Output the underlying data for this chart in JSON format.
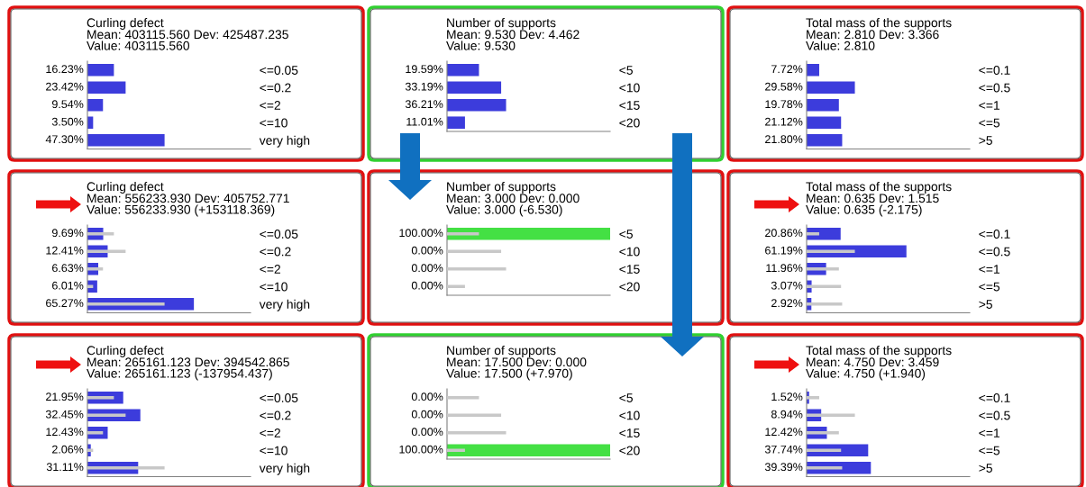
{
  "chart_data": [
    {
      "type": "bar",
      "orientation": "horizontal",
      "title": "Curling defect",
      "subtitle": "Mean: 403115.560 Dev: 425487.235\nValue: 403115.560",
      "categories": [
        "<=0.05",
        "<=0.2",
        "<=2",
        "<=10",
        "very high"
      ],
      "xlim": [
        0,
        100
      ],
      "tick_labels": "y",
      "series": [
        {
          "color": "#3c3cdc",
          "values": [
            16.23,
            23.42,
            9.54,
            3.5,
            47.3
          ],
          "value_labels": [
            "16.23%",
            "23.42%",
            "9.54%",
            "3.50%",
            "47.30%"
          ]
        }
      ]
    },
    {
      "type": "bar",
      "orientation": "horizontal",
      "title": "Number of supports",
      "subtitle": "Mean: 9.530 Dev: 4.462\nValue: 9.530",
      "categories": [
        "<5",
        "<10",
        "<15",
        "<20"
      ],
      "xlim": [
        0,
        100
      ],
      "tick_labels": "y",
      "series": [
        {
          "color": "#3c3cdc",
          "values": [
            19.59,
            33.19,
            36.21,
            11.01
          ],
          "value_labels": [
            "19.59%",
            "33.19%",
            "36.21%",
            "11.01%"
          ]
        }
      ]
    },
    {
      "type": "bar",
      "orientation": "horizontal",
      "title": "Total mass of the supports",
      "subtitle": "Mean: 2.810 Dev: 3.366\nValue: 2.810",
      "categories": [
        "<=0.1",
        "<=0.5",
        "<=1",
        "<=5",
        ">5"
      ],
      "xlim": [
        0,
        100
      ],
      "tick_labels": "y",
      "series": [
        {
          "color": "#3c3cdc",
          "values": [
            7.72,
            29.58,
            19.78,
            21.12,
            21.8
          ],
          "value_labels": [
            "7.72%",
            "29.58%",
            "19.78%",
            "21.12%",
            "21.80%"
          ]
        }
      ]
    },
    {
      "type": "bar",
      "orientation": "horizontal",
      "title": "Curling defect",
      "subtitle": "Mean: 556233.930 Dev: 405752.771\nValue: 556233.930 (+153118.369)",
      "categories": [
        "<=0.05",
        "<=0.2",
        "<=2",
        "<=10",
        "very high"
      ],
      "xlim": [
        0,
        100
      ],
      "tick_labels": "y",
      "series": [
        {
          "color": "#3c3cdc",
          "values": [
            9.69,
            12.41,
            6.63,
            6.01,
            65.27
          ],
          "value_labels": [
            "9.69%",
            "12.41%",
            "6.63%",
            "6.01%",
            "65.27%"
          ]
        },
        {
          "color": "#c8c8c8",
          "values": [
            16.23,
            23.42,
            9.54,
            3.5,
            47.3
          ]
        }
      ]
    },
    {
      "type": "bar",
      "orientation": "horizontal",
      "title": "Number of supports",
      "subtitle": "Mean: 3.000 Dev: 0.000\nValue: 3.000 (-6.530)",
      "categories": [
        "<5",
        "<10",
        "<15",
        "<20"
      ],
      "xlim": [
        0,
        100
      ],
      "tick_labels": "y",
      "series": [
        {
          "colors": [
            "#44e044",
            "#3c3cdc",
            "#3c3cdc",
            "#3c3cdc"
          ],
          "values": [
            100,
            0,
            0,
            0
          ],
          "value_labels": [
            "100.00%",
            "0.00%",
            "0.00%",
            "0.00%"
          ]
        },
        {
          "color": "#c8c8c8",
          "values": [
            19.59,
            33.19,
            36.21,
            11.01
          ]
        }
      ]
    },
    {
      "type": "bar",
      "orientation": "horizontal",
      "title": "Total mass of the supports",
      "subtitle": "Mean: 0.635 Dev: 1.515\nValue: 0.635 (-2.175)",
      "categories": [
        "<=0.1",
        "<=0.5",
        "<=1",
        "<=5",
        ">5"
      ],
      "xlim": [
        0,
        100
      ],
      "tick_labels": "y",
      "series": [
        {
          "color": "#3c3cdc",
          "values": [
            20.86,
            61.19,
            11.96,
            3.07,
            2.92
          ],
          "value_labels": [
            "20.86%",
            "61.19%",
            "11.96%",
            "3.07%",
            "2.92%"
          ]
        },
        {
          "color": "#c8c8c8",
          "values": [
            7.72,
            29.58,
            19.78,
            21.12,
            21.8
          ]
        }
      ]
    },
    {
      "type": "bar",
      "orientation": "horizontal",
      "title": "Curling defect",
      "subtitle": "Mean: 265161.123 Dev: 394542.865\nValue: 265161.123 (-137954.437)",
      "categories": [
        "<=0.05",
        "<=0.2",
        "<=2",
        "<=10",
        "very high"
      ],
      "xlim": [
        0,
        100
      ],
      "tick_labels": "y",
      "series": [
        {
          "color": "#3c3cdc",
          "values": [
            21.95,
            32.45,
            12.43,
            2.06,
            31.11
          ],
          "value_labels": [
            "21.95%",
            "32.45%",
            "12.43%",
            "2.06%",
            "31.11%"
          ]
        },
        {
          "color": "#c8c8c8",
          "values": [
            16.23,
            23.42,
            9.54,
            3.5,
            47.3
          ]
        }
      ]
    },
    {
      "type": "bar",
      "orientation": "horizontal",
      "title": "Number of supports",
      "subtitle": "Mean: 17.500 Dev: 0.000\nValue: 17.500 (+7.970)",
      "categories": [
        "<5",
        "<10",
        "<15",
        "<20"
      ],
      "xlim": [
        0,
        100
      ],
      "tick_labels": "y",
      "series": [
        {
          "colors": [
            "#3c3cdc",
            "#3c3cdc",
            "#3c3cdc",
            "#44e044"
          ],
          "values": [
            0,
            0,
            0,
            100
          ],
          "value_labels": [
            "0.00%",
            "0.00%",
            "0.00%",
            "100.00%"
          ]
        },
        {
          "color": "#c8c8c8",
          "values": [
            19.59,
            33.19,
            36.21,
            11.01
          ]
        }
      ]
    },
    {
      "type": "bar",
      "orientation": "horizontal",
      "title": "Total mass of the supports",
      "subtitle": "Mean: 4.750 Dev: 3.459\nValue: 4.750 (+1.940)",
      "categories": [
        "<=0.1",
        "<=0.5",
        "<=1",
        "<=5",
        ">5"
      ],
      "xlim": [
        0,
        100
      ],
      "tick_labels": "y",
      "series": [
        {
          "color": "#3c3cdc",
          "values": [
            1.52,
            8.94,
            12.42,
            37.74,
            39.39
          ],
          "value_labels": [
            "1.52%",
            "8.94%",
            "12.42%",
            "37.74%",
            "39.39%"
          ]
        },
        {
          "color": "#c8c8c8",
          "values": [
            7.72,
            29.58,
            19.78,
            21.12,
            21.8
          ]
        }
      ]
    }
  ]
}
